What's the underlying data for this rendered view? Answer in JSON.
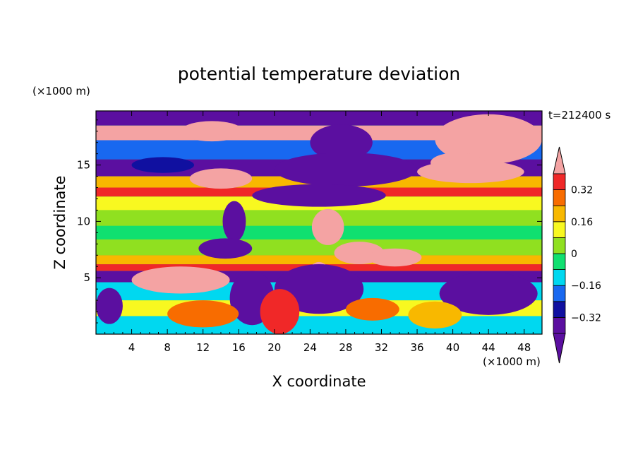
{
  "chart_data": {
    "type": "heatmap",
    "title": "potential temperature deviation",
    "xlabel": "X coordinate",
    "ylabel": "Z coordinate",
    "x_unit_label": "(×1000 m)",
    "y_unit_label": "(×1000 m)",
    "time_label": "t=212400 s",
    "xlim": [
      0,
      50
    ],
    "ylim": [
      0,
      19.8
    ],
    "x_ticks": [
      4,
      8,
      12,
      16,
      20,
      24,
      28,
      32,
      36,
      40,
      44,
      48
    ],
    "x_tick_labels": [
      "4",
      "8",
      "12",
      "16",
      "20",
      "24",
      "28",
      "32",
      "36",
      "40",
      "44",
      "48"
    ],
    "y_ticks": [
      5,
      10,
      15
    ],
    "y_tick_labels": [
      "5",
      "10",
      "15"
    ],
    "colorbar": {
      "levels": [
        -0.4,
        -0.32,
        -0.24,
        -0.16,
        -0.08,
        0,
        0.08,
        0.16,
        0.24,
        0.32,
        0.4
      ],
      "tick_values": [
        -0.32,
        -0.16,
        0,
        0.16,
        0.32
      ],
      "tick_labels": [
        "−0.32",
        "−0.16",
        "0",
        "0.16",
        "0.32"
      ],
      "colors": [
        "#5b0fa0",
        "#1010a0",
        "#1868f0",
        "#00d8f0",
        "#10e070",
        "#90e020",
        "#f8f820",
        "#f8b800",
        "#f86c00",
        "#f02828"
      ],
      "under_color": "#5b0fa0",
      "over_color": "#f4a3a3",
      "extend": "both"
    },
    "layers": [
      {
        "z": [
          18.5,
          19.8
        ],
        "value": -0.45
      },
      {
        "z": [
          17.2,
          18.5
        ],
        "value": 0.45
      },
      {
        "z": [
          15.5,
          17.2
        ],
        "value": -0.2
      },
      {
        "z": [
          14.0,
          15.5
        ],
        "value": -0.45
      },
      {
        "z": [
          13.0,
          14.0
        ],
        "value": 0.2
      },
      {
        "z": [
          12.2,
          13.0
        ],
        "value": 0.34
      },
      {
        "z": [
          11.0,
          12.2
        ],
        "value": 0.12
      },
      {
        "z": [
          9.6,
          11.0
        ],
        "value": 0.03
      },
      {
        "z": [
          8.4,
          9.6
        ],
        "value": -0.06
      },
      {
        "z": [
          7.0,
          8.4
        ],
        "value": 0.05
      },
      {
        "z": [
          6.2,
          7.0
        ],
        "value": 0.2
      },
      {
        "z": [
          5.6,
          6.2
        ],
        "value": 0.36
      },
      {
        "z": [
          4.6,
          5.6
        ],
        "value": -0.45
      },
      {
        "z": [
          3.0,
          4.6
        ],
        "value": -0.12
      },
      {
        "z": [
          1.6,
          3.0
        ],
        "value": 0.1
      },
      {
        "z": [
          0,
          1.6
        ],
        "value": -0.1
      }
    ],
    "features": [
      {
        "type": "ellipse",
        "cx": 27.5,
        "cy": 17.0,
        "rx": 3.5,
        "ry": 1.6,
        "value": -0.45
      },
      {
        "type": "ellipse",
        "cx": 44.0,
        "cy": 17.3,
        "rx": 6.0,
        "ry": 2.2,
        "value": 0.45
      },
      {
        "type": "ellipse",
        "cx": 40.5,
        "cy": 15.2,
        "rx": 3.0,
        "ry": 0.9,
        "value": 0.45
      },
      {
        "type": "ellipse",
        "cx": 13.0,
        "cy": 18.0,
        "rx": 3.5,
        "ry": 0.9,
        "value": 0.45
      },
      {
        "type": "ellipse",
        "cx": 28.0,
        "cy": 14.6,
        "rx": 8.0,
        "ry": 1.5,
        "value": -0.45
      },
      {
        "type": "ellipse",
        "cx": 14.0,
        "cy": 13.8,
        "rx": 3.5,
        "ry": 0.9,
        "value": 0.45
      },
      {
        "type": "ellipse",
        "cx": 42.0,
        "cy": 14.4,
        "rx": 6.0,
        "ry": 1.0,
        "value": 0.45
      },
      {
        "type": "ellipse",
        "cx": 25.0,
        "cy": 12.3,
        "rx": 7.5,
        "ry": 1.0,
        "value": -0.45
      },
      {
        "type": "ellipse",
        "cx": 15.5,
        "cy": 10.0,
        "rx": 1.3,
        "ry": 1.8,
        "value": -0.45
      },
      {
        "type": "ellipse",
        "cx": 14.5,
        "cy": 7.6,
        "rx": 3.0,
        "ry": 0.9,
        "value": -0.45
      },
      {
        "type": "ellipse",
        "cx": 26.0,
        "cy": 9.5,
        "rx": 1.8,
        "ry": 1.6,
        "value": 0.45
      },
      {
        "type": "ellipse",
        "cx": 29.5,
        "cy": 7.2,
        "rx": 2.8,
        "ry": 1.0,
        "value": 0.45
      },
      {
        "type": "ellipse",
        "cx": 33.5,
        "cy": 6.8,
        "rx": 3.0,
        "ry": 0.8,
        "value": 0.45
      },
      {
        "type": "ellipse",
        "cx": 9.5,
        "cy": 4.8,
        "rx": 5.5,
        "ry": 1.2,
        "value": 0.45
      },
      {
        "type": "ellipse",
        "cx": 25.0,
        "cy": 4.8,
        "rx": 1.4,
        "ry": 1.6,
        "value": 0.45
      },
      {
        "type": "ellipse",
        "cx": 25.0,
        "cy": 4.0,
        "rx": 5.0,
        "ry": 2.2,
        "value": -0.45
      },
      {
        "type": "ellipse",
        "cx": 17.5,
        "cy": 3.2,
        "rx": 2.5,
        "ry": 2.4,
        "value": -0.45
      },
      {
        "type": "ellipse",
        "cx": 20.6,
        "cy": 2.0,
        "rx": 1.2,
        "ry": 1.3,
        "value": 0.45
      },
      {
        "type": "ellipse",
        "cx": 20.6,
        "cy": 2.0,
        "rx": 2.2,
        "ry": 2.0,
        "value": 0.34
      },
      {
        "type": "ellipse",
        "cx": 44.0,
        "cy": 3.6,
        "rx": 5.5,
        "ry": 1.9,
        "value": -0.45
      },
      {
        "type": "ellipse",
        "cx": 38.0,
        "cy": 1.7,
        "rx": 3.0,
        "ry": 1.2,
        "value": 0.2
      },
      {
        "type": "ellipse",
        "cx": 31.0,
        "cy": 2.2,
        "rx": 3.0,
        "ry": 1.0,
        "value": 0.3
      },
      {
        "type": "ellipse",
        "cx": 12.0,
        "cy": 1.8,
        "rx": 4.0,
        "ry": 1.2,
        "value": 0.25
      },
      {
        "type": "ellipse",
        "cx": 1.5,
        "cy": 2.5,
        "rx": 1.5,
        "ry": 1.6,
        "value": -0.45
      },
      {
        "type": "ellipse",
        "cx": 7.5,
        "cy": 15.0,
        "rx": 3.5,
        "ry": 0.7,
        "value": -0.3
      }
    ]
  }
}
